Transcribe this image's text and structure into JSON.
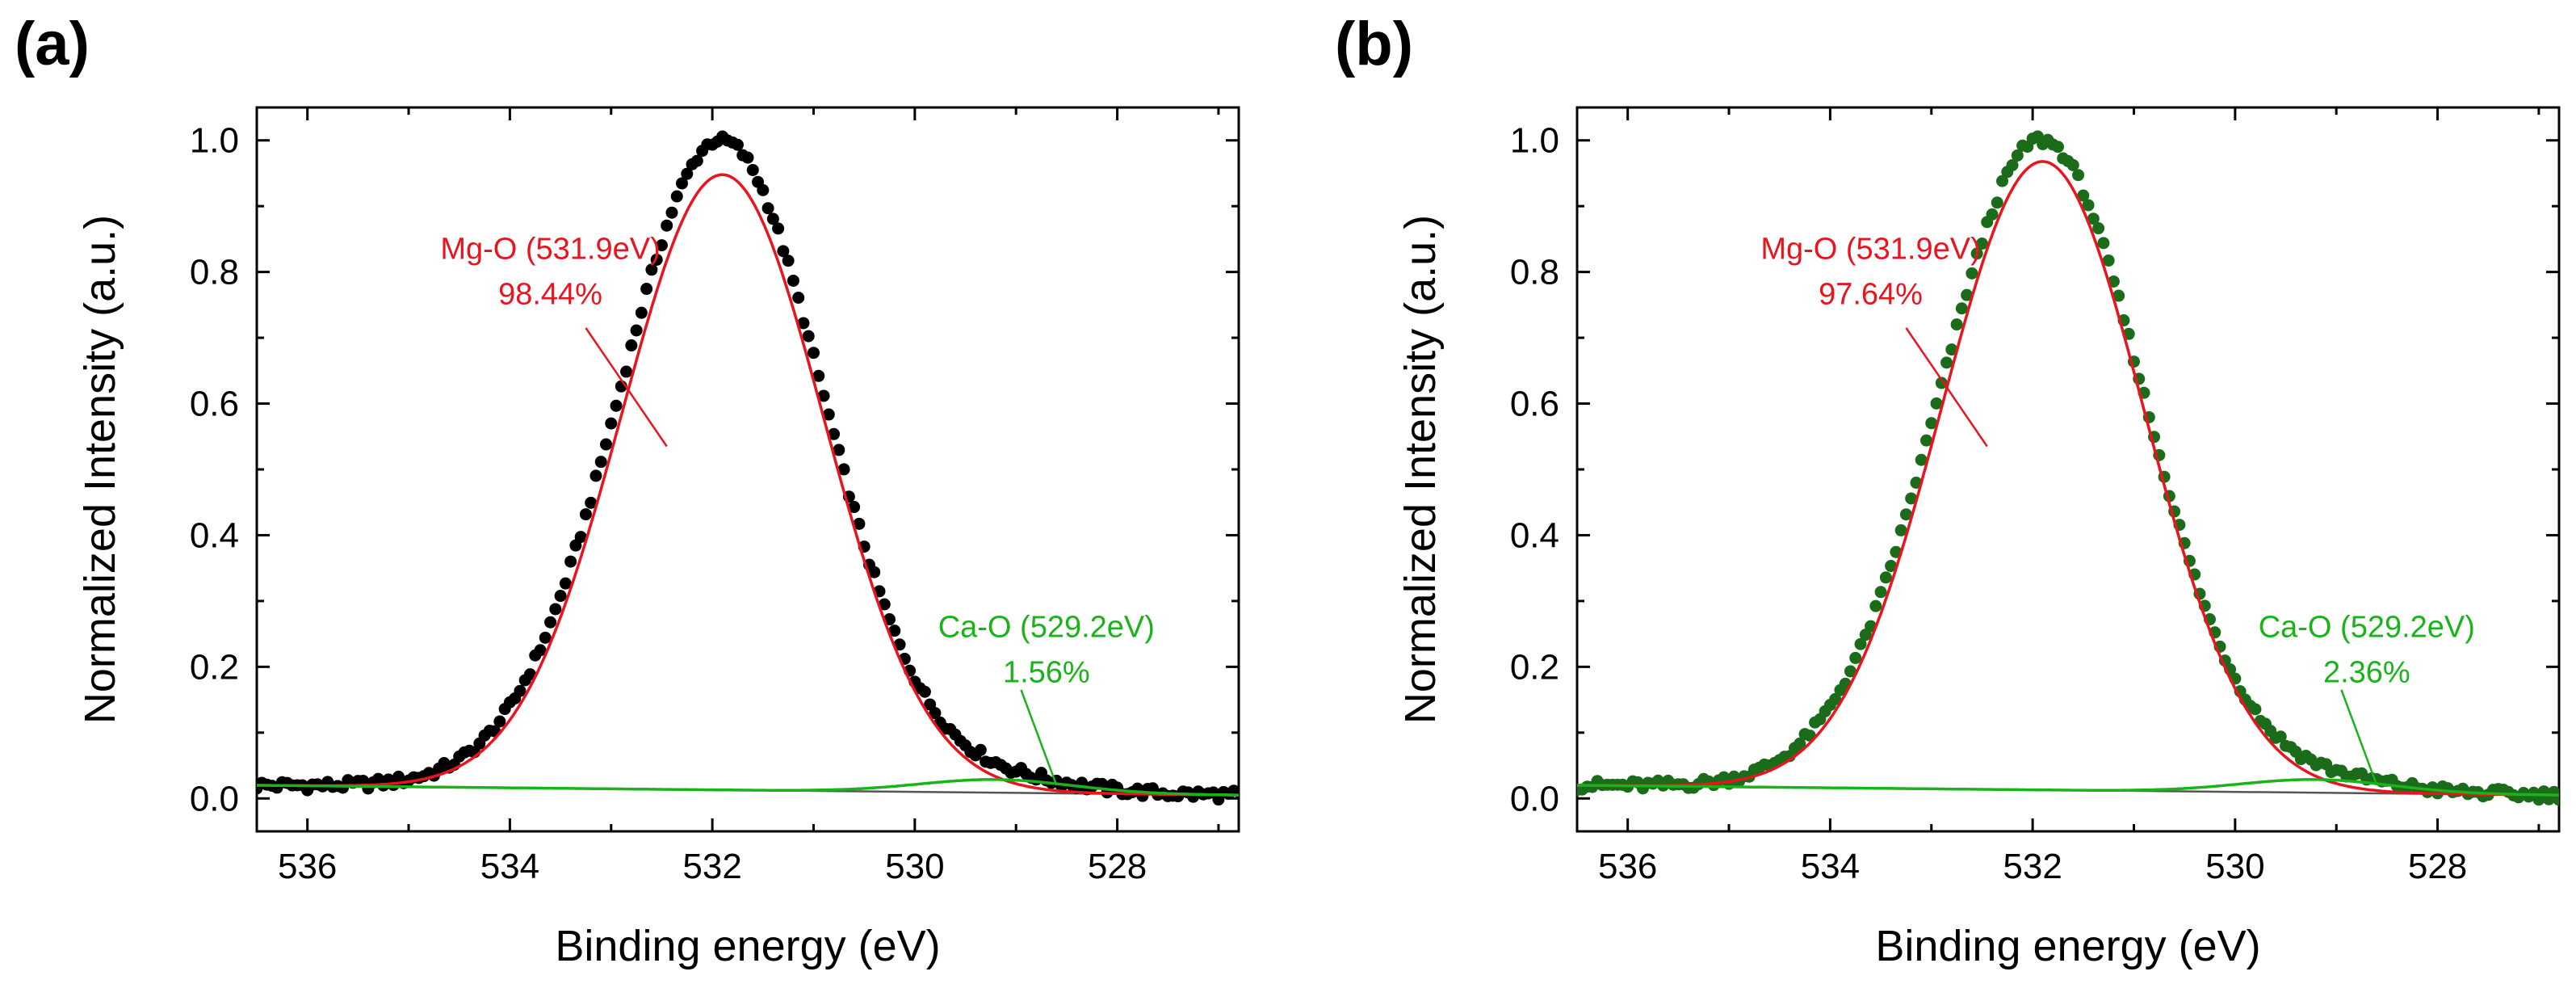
{
  "chart_data": [
    {
      "panel_label": "(a)",
      "type": "scatter",
      "xlabel": "Binding energy (eV)",
      "ylabel": "Normalized Intensity (a.u.)",
      "xlim": [
        536.5,
        526.8
      ],
      "ylim": [
        -0.05,
        1.05
      ],
      "x_ticks": [
        536,
        534,
        532,
        530,
        528
      ],
      "y_ticks": [
        0.0,
        0.2,
        0.4,
        0.6,
        0.8,
        1.0
      ],
      "x_tick_labels": [
        "536",
        "534",
        "532",
        "530",
        "528"
      ],
      "y_tick_labels": [
        "0.0",
        "0.2",
        "0.4",
        "0.6",
        "0.8",
        "1.0"
      ],
      "x_axis_reversed": true,
      "marker_color": "#000000",
      "background": {
        "left_x": 536.5,
        "left_y": 0.02,
        "right_x": 526.8,
        "right_y": 0.005,
        "color": "#555555"
      },
      "peaks": [
        {
          "label": "Mg-O (531.9eV)",
          "percent": "98.44%",
          "center": 531.9,
          "height": 0.935,
          "sigma": 1.0,
          "color": "#e8141e",
          "label_pos": [
            533.6,
            0.82
          ],
          "leader_from": [
            533.25,
            0.715
          ],
          "leader_to": [
            532.45,
            0.535
          ]
        },
        {
          "label": "Ca-O (529.2eV)",
          "percent": "1.56%",
          "center": 529.2,
          "height": 0.02,
          "sigma": 0.75,
          "color": "#1ab31a",
          "label_pos": [
            528.7,
            0.245
          ],
          "leader_from": [
            528.95,
            0.165
          ],
          "leader_to": [
            528.6,
            0.02
          ]
        }
      ],
      "data_points": {
        "x_start": 536.5,
        "x_end": 526.8,
        "step": 0.05,
        "peak_max": 1.0,
        "noise_amplitude": 0.005
      }
    },
    {
      "panel_label": "(b)",
      "type": "scatter",
      "xlabel": "Binding energy (eV)",
      "ylabel": "Normalized Intensity (a.u.)",
      "xlim": [
        536.5,
        526.8
      ],
      "ylim": [
        -0.05,
        1.05
      ],
      "x_ticks": [
        536,
        534,
        532,
        530,
        528
      ],
      "y_ticks": [
        0.0,
        0.2,
        0.4,
        0.6,
        0.8,
        1.0
      ],
      "x_tick_labels": [
        "536",
        "534",
        "532",
        "530",
        "528"
      ],
      "y_tick_labels": [
        "0.0",
        "0.2",
        "0.4",
        "0.6",
        "0.8",
        "1.0"
      ],
      "x_axis_reversed": true,
      "marker_color": "#1a6b1a",
      "background": {
        "left_x": 536.5,
        "left_y": 0.02,
        "right_x": 526.8,
        "right_y": 0.005,
        "color": "#555555"
      },
      "peaks": [
        {
          "label": "Mg-O (531.9eV)",
          "percent": "97.64%",
          "center": 531.9,
          "height": 0.955,
          "sigma": 1.0,
          "color": "#e8141e",
          "label_pos": [
            533.6,
            0.82
          ],
          "leader_from": [
            533.25,
            0.715
          ],
          "leader_to": [
            532.45,
            0.535
          ]
        },
        {
          "label": "Ca-O (529.2eV)",
          "percent": "2.36%",
          "center": 529.2,
          "height": 0.02,
          "sigma": 0.75,
          "color": "#1ab31a",
          "label_pos": [
            528.7,
            0.245
          ],
          "leader_from": [
            528.95,
            0.165
          ],
          "leader_to": [
            528.6,
            0.02
          ]
        }
      ],
      "data_points": {
        "x_start": 536.5,
        "x_end": 526.8,
        "step": 0.05,
        "peak_max": 1.0,
        "noise_amplitude": 0.005
      }
    }
  ]
}
